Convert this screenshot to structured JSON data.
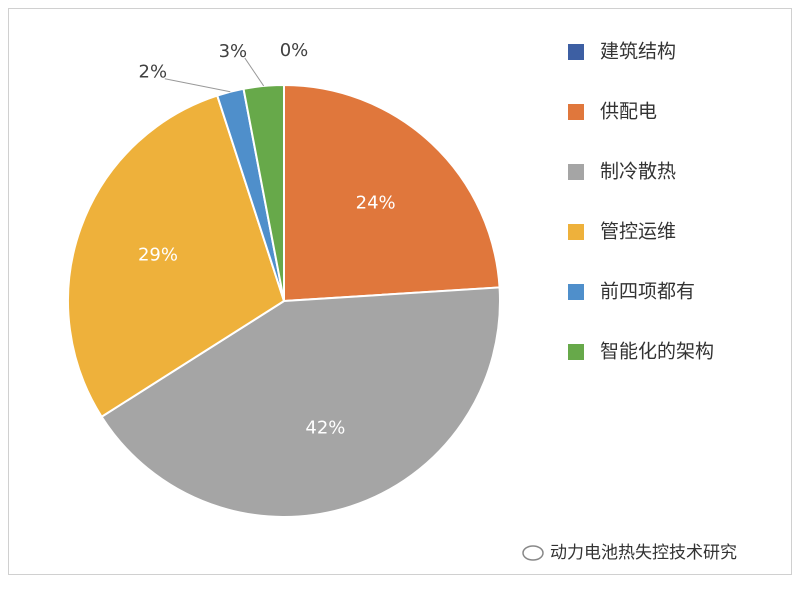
{
  "chart_data": {
    "type": "pie",
    "categories": [
      "建筑结构",
      "供配电",
      "制冷散热",
      "管控运维",
      "前四项都有",
      "智能化的架构"
    ],
    "values": [
      0,
      24,
      42,
      29,
      2,
      3
    ],
    "value_labels": [
      "0%",
      "24%",
      "42%",
      "29%",
      "2%",
      "3%"
    ],
    "colors": [
      "#3d5fa3",
      "#e0773c",
      "#a5a5a5",
      "#eeb13b",
      "#4f8fcb",
      "#67a94a"
    ],
    "legend": "right"
  },
  "watermark": "动力电池热失控技术研究"
}
